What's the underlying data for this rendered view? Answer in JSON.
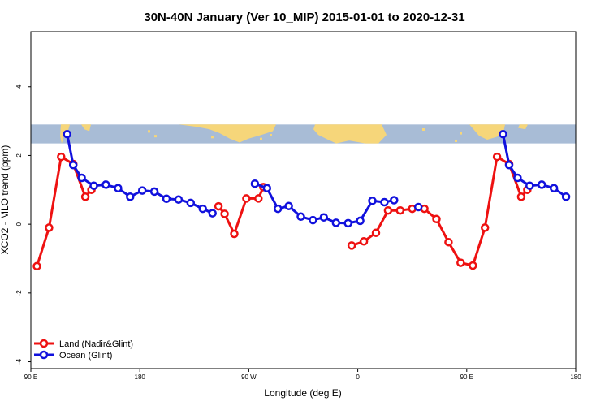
{
  "chart_data": {
    "type": "line",
    "title": "30N-40N January (Ver 10_MIP)   2015-01-01 to 2020-12-31",
    "xlabel": "Longitude (deg E)",
    "ylabel": "XCO2 - MLO trend (ppm)",
    "xlim": [
      90,
      540
    ],
    "ylim": [
      -4.2,
      5.6
    ],
    "grid": false,
    "legend_position": "bottom-left",
    "x_ticks": [
      {
        "value": 90,
        "label": "90 E"
      },
      {
        "value": 180,
        "label": "180"
      },
      {
        "value": 270,
        "label": "90 W"
      },
      {
        "value": 360,
        "label": "0"
      },
      {
        "value": 450,
        "label": "90 E"
      },
      {
        "value": 540,
        "label": "180"
      }
    ],
    "y_ticks": [
      {
        "value": -4,
        "label": "-4"
      },
      {
        "value": -2,
        "label": "-2"
      },
      {
        "value": 0,
        "label": "0"
      },
      {
        "value": 2,
        "label": "2"
      },
      {
        "value": 4,
        "label": "4"
      }
    ],
    "map_band": {
      "y_bottom": 2.35,
      "y_top": 2.9,
      "ocean_color": "#a8bcd6",
      "land_color": "#f6d67a"
    },
    "series": [
      {
        "name": "Land (Nadir&Glint)",
        "color": "#ee1111",
        "segments": [
          [
            [
              95,
              -1.22
            ],
            [
              105,
              -0.1
            ],
            [
              115,
              1.96
            ],
            [
              125,
              1.75
            ],
            [
              135,
              0.8
            ],
            [
              140,
              1.0
            ]
          ],
          [
            [
              245,
              0.52
            ],
            [
              250,
              0.3
            ],
            [
              258,
              -0.28
            ],
            [
              268,
              0.75
            ],
            [
              278,
              0.75
            ],
            [
              282,
              1.08
            ]
          ],
          [
            [
              355,
              -0.62
            ],
            [
              365,
              -0.5
            ],
            [
              375,
              -0.25
            ],
            [
              385,
              0.4
            ],
            [
              395,
              0.4
            ],
            [
              405,
              0.45
            ],
            [
              415,
              0.45
            ],
            [
              425,
              0.15
            ],
            [
              435,
              -0.52
            ],
            [
              445,
              -1.12
            ],
            [
              455,
              -1.2
            ],
            [
              465,
              -0.1
            ],
            [
              475,
              1.96
            ],
            [
              485,
              1.75
            ],
            [
              495,
              0.8
            ],
            [
              500,
              1.0
            ]
          ]
        ]
      },
      {
        "name": "Ocean (Glint)",
        "color": "#1111dd",
        "segments": [
          [
            [
              120,
              2.62
            ],
            [
              125,
              1.72
            ],
            [
              132,
              1.35
            ],
            [
              142,
              1.12
            ],
            [
              152,
              1.15
            ],
            [
              162,
              1.05
            ],
            [
              172,
              0.8
            ],
            [
              182,
              0.98
            ],
            [
              192,
              0.95
            ],
            [
              202,
              0.74
            ],
            [
              212,
              0.72
            ],
            [
              222,
              0.62
            ],
            [
              232,
              0.45
            ],
            [
              240,
              0.32
            ]
          ],
          [
            [
              275,
              1.18
            ],
            [
              285,
              1.05
            ],
            [
              294,
              0.45
            ],
            [
              303,
              0.53
            ],
            [
              313,
              0.22
            ],
            [
              323,
              0.12
            ],
            [
              332,
              0.2
            ],
            [
              342,
              0.04
            ],
            [
              352,
              0.03
            ],
            [
              362,
              0.1
            ],
            [
              372,
              0.68
            ],
            [
              382,
              0.64
            ],
            [
              390,
              0.7
            ]
          ],
          [
            [
              410,
              0.5
            ]
          ],
          [
            [
              480,
              2.62
            ],
            [
              485,
              1.72
            ],
            [
              492,
              1.35
            ],
            [
              502,
              1.12
            ],
            [
              512,
              1.15
            ],
            [
              522,
              1.05
            ],
            [
              532,
              0.8
            ]
          ]
        ]
      }
    ]
  },
  "legend": [
    {
      "label": "Land (Nadir&Glint)",
      "color": "#ee1111"
    },
    {
      "label": "Ocean (Glint)",
      "color": "#1111dd"
    }
  ]
}
